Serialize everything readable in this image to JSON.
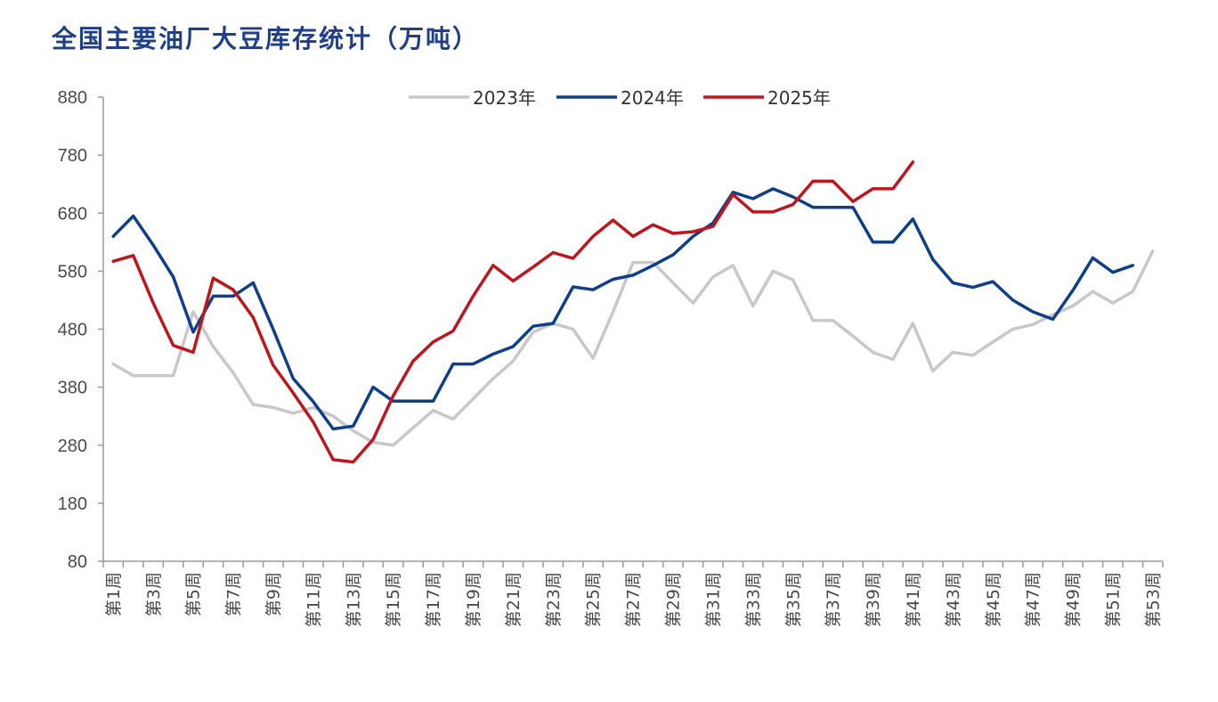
{
  "title": "全国主要油厂大豆库存统计（万吨）",
  "chart_data": {
    "type": "line",
    "title": "全国主要油厂大豆库存统计（万吨）",
    "xlabel": "",
    "ylabel": "",
    "ylim": [
      80,
      880
    ],
    "yticks": [
      80,
      180,
      280,
      380,
      480,
      580,
      680,
      780,
      880
    ],
    "num_weeks": 53,
    "tick_labels": [
      "第1周",
      "第3周",
      "第5周",
      "第7周",
      "第9周",
      "第11周",
      "第13周",
      "第15周",
      "第17周",
      "第19周",
      "第21周",
      "第23周",
      "第25周",
      "第27周",
      "第29周",
      "第31周",
      "第33周",
      "第35周",
      "第37周",
      "第39周",
      "第41周",
      "第43周",
      "第45周",
      "第47周",
      "第49周",
      "第51周",
      "第53周"
    ],
    "legend_position": "top-center",
    "series": [
      {
        "name": "2023年",
        "color": "#c8c8c8",
        "values": [
          420,
          400,
          400,
          400,
          510,
          450,
          405,
          350,
          345,
          335,
          345,
          330,
          305,
          285,
          280,
          310,
          340,
          325,
          360,
          395,
          425,
          475,
          490,
          480,
          430,
          510,
          595,
          595,
          560,
          525,
          570,
          590,
          520,
          580,
          565,
          495,
          495,
          468,
          440,
          428,
          490,
          408,
          440,
          435,
          458,
          480,
          488,
          505,
          520,
          545,
          525,
          545,
          615
        ]
      },
      {
        "name": "2024年",
        "color": "#0f3f8a",
        "values": [
          640,
          675,
          625,
          570,
          475,
          537,
          537,
          560,
          480,
          395,
          355,
          308,
          313,
          380,
          356,
          356,
          356,
          420,
          420,
          437,
          450,
          485,
          490,
          553,
          548,
          566,
          573,
          590,
          608,
          640,
          663,
          716,
          705,
          722,
          708,
          690,
          690,
          690,
          630,
          630,
          670,
          600,
          560,
          552,
          562,
          530,
          510,
          497,
          547,
          603,
          578,
          590
        ]
      },
      {
        "name": "2025年",
        "color": "#c0151c",
        "values": [
          597,
          607,
          525,
          452,
          440,
          568,
          548,
          500,
          418,
          370,
          320,
          255,
          251,
          290,
          365,
          425,
          458,
          477,
          537,
          590,
          563,
          587,
          612,
          602,
          640,
          668,
          640,
          660,
          645,
          648,
          657,
          712,
          682,
          682,
          695,
          735,
          735,
          700,
          722,
          722,
          768
        ]
      }
    ]
  }
}
